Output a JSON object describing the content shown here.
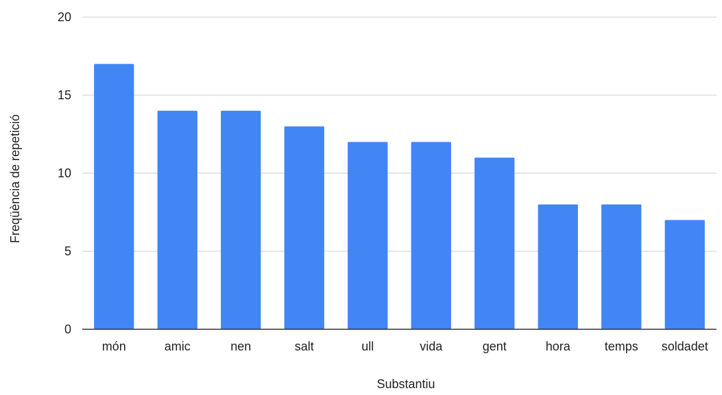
{
  "chart_data": {
    "type": "bar",
    "title": "",
    "xlabel": "Substantiu",
    "ylabel": "Freqüència de repetició",
    "categories": [
      "món",
      "amic",
      "nen",
      "salt",
      "ull",
      "vida",
      "gent",
      "hora",
      "temps",
      "soldadet"
    ],
    "values": [
      17,
      14,
      14,
      13,
      12,
      12,
      11,
      8,
      8,
      7
    ],
    "ylim": [
      0,
      20
    ],
    "yticks": [
      "0",
      "5",
      "10",
      "15",
      "20"
    ],
    "grid": true,
    "legend": "none",
    "colors": {
      "bar": "#4285f4",
      "grid": "#cccccc",
      "axis": "#333333",
      "text": "#222222"
    }
  }
}
